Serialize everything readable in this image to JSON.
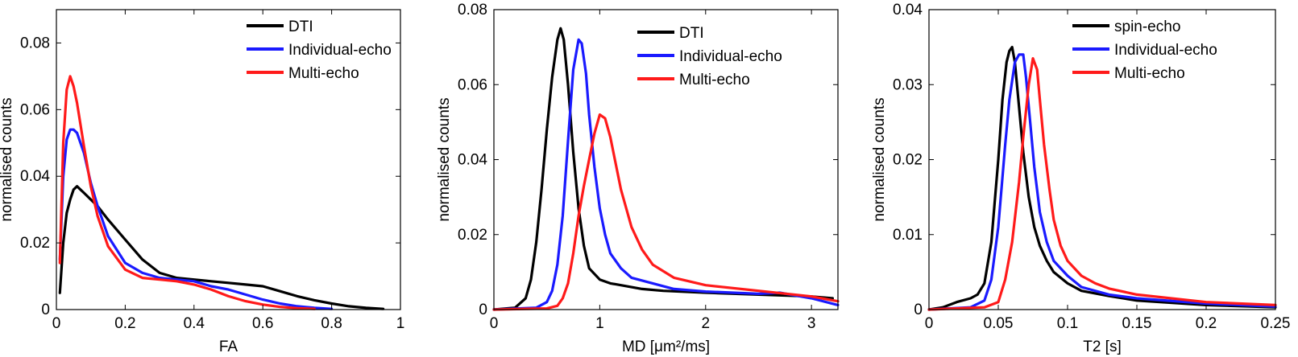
{
  "colors": {
    "black": "#000000",
    "blue": "#1a1aff",
    "red": "#ff1a1a"
  },
  "chart_data": [
    {
      "type": "line",
      "xlabel": "FA",
      "ylabel": "normalised counts",
      "xlim": [
        0,
        1
      ],
      "ylim": [
        0,
        0.09
      ],
      "xticks": [
        0,
        0.2,
        0.4,
        0.6,
        0.8,
        1
      ],
      "xtick_labels": [
        "0",
        "0.2",
        "0.4",
        "0.6",
        "0.8",
        "1"
      ],
      "yticks": [
        0,
        0.02,
        0.04,
        0.06,
        0.08
      ],
      "ytick_labels": [
        "0",
        "0.02",
        "0.04",
        "0.06",
        "0.08"
      ],
      "legend_position": "top-right",
      "grid": false,
      "series": [
        {
          "name": "DTI",
          "color": "black",
          "x": [
            0.01,
            0.02,
            0.03,
            0.04,
            0.05,
            0.06,
            0.07,
            0.08,
            0.1,
            0.12,
            0.15,
            0.2,
            0.25,
            0.3,
            0.35,
            0.4,
            0.45,
            0.5,
            0.55,
            0.6,
            0.65,
            0.7,
            0.75,
            0.8,
            0.85,
            0.9,
            0.95
          ],
          "y": [
            0.005,
            0.02,
            0.029,
            0.033,
            0.036,
            0.037,
            0.036,
            0.035,
            0.033,
            0.031,
            0.027,
            0.021,
            0.015,
            0.011,
            0.0095,
            0.009,
            0.0085,
            0.008,
            0.0075,
            0.007,
            0.0055,
            0.004,
            0.0028,
            0.0018,
            0.001,
            0.0005,
            0.0002
          ]
        },
        {
          "name": "Individual-echo",
          "color": "blue",
          "x": [
            0.01,
            0.02,
            0.03,
            0.04,
            0.05,
            0.06,
            0.08,
            0.1,
            0.12,
            0.15,
            0.2,
            0.25,
            0.3,
            0.35,
            0.4,
            0.45,
            0.5,
            0.55,
            0.6,
            0.65,
            0.7,
            0.75,
            0.8
          ],
          "y": [
            0.015,
            0.04,
            0.051,
            0.054,
            0.054,
            0.053,
            0.047,
            0.038,
            0.031,
            0.022,
            0.014,
            0.011,
            0.0095,
            0.009,
            0.0085,
            0.007,
            0.006,
            0.0045,
            0.003,
            0.0018,
            0.001,
            0.0005,
            0.0002
          ]
        },
        {
          "name": "Multi-echo",
          "color": "red",
          "x": [
            0.01,
            0.02,
            0.03,
            0.04,
            0.05,
            0.06,
            0.08,
            0.1,
            0.12,
            0.15,
            0.2,
            0.25,
            0.3,
            0.35,
            0.4,
            0.45,
            0.5,
            0.55,
            0.6,
            0.65,
            0.7,
            0.75
          ],
          "y": [
            0.014,
            0.05,
            0.066,
            0.07,
            0.067,
            0.062,
            0.049,
            0.037,
            0.028,
            0.019,
            0.012,
            0.0095,
            0.009,
            0.0085,
            0.0075,
            0.006,
            0.004,
            0.0025,
            0.0015,
            0.0008,
            0.0004,
            0.0002
          ]
        }
      ]
    },
    {
      "type": "line",
      "xlabel": "MD [μm²/ms]",
      "ylabel": "normalised counts",
      "xlim": [
        0,
        3.25
      ],
      "ylim": [
        0,
        0.08
      ],
      "xticks": [
        0,
        1,
        2,
        3
      ],
      "xtick_labels": [
        "0",
        "1",
        "2",
        "3"
      ],
      "yticks": [
        0,
        0.02,
        0.04,
        0.06,
        0.08
      ],
      "ytick_labels": [
        "0",
        "0.02",
        "0.04",
        "0.06",
        "0.08"
      ],
      "legend_position": "top-right",
      "grid": false,
      "series": [
        {
          "name": "DTI",
          "color": "black",
          "x": [
            0,
            0.2,
            0.3,
            0.35,
            0.4,
            0.45,
            0.5,
            0.55,
            0.6,
            0.63,
            0.66,
            0.7,
            0.75,
            0.8,
            0.85,
            0.9,
            1.0,
            1.1,
            1.2,
            1.4,
            1.6,
            2.0,
            2.5,
            3.0,
            3.2
          ],
          "y": [
            0,
            0.0005,
            0.003,
            0.008,
            0.018,
            0.032,
            0.048,
            0.062,
            0.072,
            0.075,
            0.072,
            0.06,
            0.042,
            0.027,
            0.017,
            0.011,
            0.008,
            0.007,
            0.0065,
            0.0055,
            0.005,
            0.0045,
            0.004,
            0.0035,
            0.003
          ]
        },
        {
          "name": "Individual-echo",
          "color": "blue",
          "x": [
            0,
            0.4,
            0.5,
            0.55,
            0.6,
            0.65,
            0.7,
            0.75,
            0.8,
            0.83,
            0.87,
            0.9,
            0.95,
            1.0,
            1.05,
            1.1,
            1.2,
            1.3,
            1.5,
            1.7,
            2.0,
            2.5,
            2.7,
            3.0,
            3.25
          ],
          "y": [
            0,
            0.0005,
            0.002,
            0.005,
            0.012,
            0.025,
            0.045,
            0.064,
            0.072,
            0.071,
            0.063,
            0.052,
            0.038,
            0.027,
            0.02,
            0.015,
            0.011,
            0.0085,
            0.007,
            0.0055,
            0.0048,
            0.0042,
            0.0045,
            0.003,
            0.0012
          ]
        },
        {
          "name": "Multi-echo",
          "color": "red",
          "x": [
            0,
            0.5,
            0.6,
            0.65,
            0.7,
            0.75,
            0.8,
            0.85,
            0.9,
            0.95,
            1.0,
            1.05,
            1.1,
            1.15,
            1.2,
            1.3,
            1.4,
            1.5,
            1.7,
            2.0,
            2.5,
            3.0,
            3.25
          ],
          "y": [
            0,
            0.0003,
            0.001,
            0.003,
            0.007,
            0.015,
            0.025,
            0.033,
            0.04,
            0.047,
            0.052,
            0.051,
            0.046,
            0.039,
            0.032,
            0.022,
            0.016,
            0.012,
            0.0085,
            0.0065,
            0.005,
            0.0035,
            0.0022
          ]
        }
      ]
    },
    {
      "type": "line",
      "xlabel": "T2 [s]",
      "ylabel": "normalised counts",
      "xlim": [
        0,
        0.25
      ],
      "ylim": [
        0,
        0.04
      ],
      "xticks": [
        0,
        0.05,
        0.1,
        0.15,
        0.2,
        0.25
      ],
      "xtick_labels": [
        "0",
        "0.05",
        "0.1",
        "0.15",
        "0.2",
        "0.25"
      ],
      "yticks": [
        0,
        0.01,
        0.02,
        0.03,
        0.04
      ],
      "ytick_labels": [
        "0",
        "0.01",
        "0.02",
        "0.03",
        "0.04"
      ],
      "legend_position": "top-right",
      "grid": false,
      "series": [
        {
          "name": "spin-echo",
          "color": "black",
          "x": [
            0,
            0.01,
            0.02,
            0.03,
            0.035,
            0.04,
            0.045,
            0.05,
            0.053,
            0.056,
            0.058,
            0.06,
            0.062,
            0.065,
            0.068,
            0.072,
            0.076,
            0.08,
            0.085,
            0.09,
            0.1,
            0.11,
            0.13,
            0.15,
            0.2,
            0.25
          ],
          "y": [
            0,
            0.0003,
            0.001,
            0.0015,
            0.002,
            0.0035,
            0.009,
            0.02,
            0.028,
            0.033,
            0.0345,
            0.035,
            0.033,
            0.027,
            0.021,
            0.015,
            0.011,
            0.0085,
            0.0065,
            0.005,
            0.0035,
            0.0025,
            0.0018,
            0.0012,
            0.0006,
            0.0003
          ]
        },
        {
          "name": "Individual-echo",
          "color": "blue",
          "x": [
            0,
            0.03,
            0.04,
            0.045,
            0.05,
            0.055,
            0.058,
            0.062,
            0.065,
            0.068,
            0.07,
            0.073,
            0.076,
            0.08,
            0.085,
            0.09,
            0.1,
            0.11,
            0.13,
            0.15,
            0.2,
            0.25
          ],
          "y": [
            0,
            0.0003,
            0.0012,
            0.004,
            0.011,
            0.022,
            0.028,
            0.033,
            0.034,
            0.034,
            0.031,
            0.025,
            0.019,
            0.013,
            0.009,
            0.0065,
            0.0045,
            0.003,
            0.002,
            0.0015,
            0.0008,
            0.0004
          ]
        },
        {
          "name": "Multi-echo",
          "color": "red",
          "x": [
            0,
            0.04,
            0.05,
            0.055,
            0.06,
            0.065,
            0.068,
            0.072,
            0.075,
            0.078,
            0.08,
            0.083,
            0.087,
            0.09,
            0.095,
            0.1,
            0.11,
            0.12,
            0.13,
            0.15,
            0.2,
            0.25
          ],
          "y": [
            0,
            0.0003,
            0.001,
            0.004,
            0.009,
            0.017,
            0.023,
            0.03,
            0.0335,
            0.032,
            0.028,
            0.022,
            0.016,
            0.012,
            0.0085,
            0.0065,
            0.0045,
            0.0035,
            0.0028,
            0.002,
            0.001,
            0.0006
          ]
        }
      ]
    }
  ]
}
